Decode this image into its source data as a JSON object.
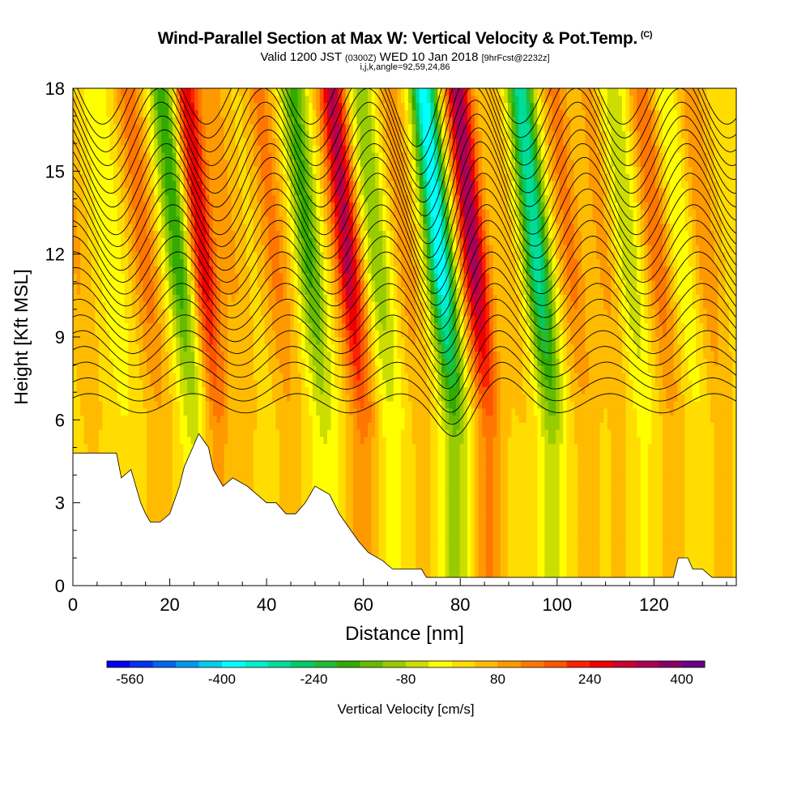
{
  "title": {
    "main": "Wind-Parallel Section at Max W: Vertical Velocity & Pot.Temp.",
    "copyright": "(C)",
    "valid_prefix": "Valid 1200 JST",
    "valid_utc": "(0300Z)",
    "valid_date": "WED 10 Jan 2018",
    "forecast": "[9hrFcst@2232z]",
    "indices": "i,j,k,angle=92,59,24,86"
  },
  "chart_data": {
    "type": "heatmap",
    "xlabel": "Distance [nm]",
    "ylabel": "Height [Kft MSL]",
    "xlim": [
      0,
      137
    ],
    "ylim": [
      0,
      18
    ],
    "x_ticks": [
      0,
      20,
      40,
      60,
      80,
      100,
      120
    ],
    "y_ticks": [
      0,
      3,
      6,
      9,
      12,
      15,
      18
    ],
    "grid": false,
    "colorbar": {
      "label": "Vertical Velocity [cm/s]",
      "tick_labels": [
        "-560",
        "-400",
        "-240",
        "-80",
        "80",
        "240",
        "400"
      ],
      "tick_values": [
        -560,
        -400,
        -240,
        -80,
        80,
        240,
        400
      ],
      "range": [
        -600,
        440
      ],
      "colors": [
        "#0000ee",
        "#0033ee",
        "#0066ee",
        "#0099ee",
        "#00ccee",
        "#00ffff",
        "#00eecc",
        "#00dd99",
        "#00cc66",
        "#22bb33",
        "#33aa00",
        "#66bb00",
        "#99cc00",
        "#ccdd00",
        "#ffff00",
        "#ffdd00",
        "#ffbb00",
        "#ff9900",
        "#ff7700",
        "#ff5500",
        "#ff2200",
        "#ee0000",
        "#cc0033",
        "#aa0055",
        "#880066",
        "#660088"
      ]
    },
    "w_features": [
      {
        "x_nm": 4,
        "w_cm_s": 60
      },
      {
        "x_nm": 11,
        "w_cm_s": -60
      },
      {
        "x_nm": 18,
        "w_cm_s": 120
      },
      {
        "x_nm": 25,
        "w_cm_s": -220
      },
      {
        "x_nm": 30,
        "w_cm_s": 250
      },
      {
        "x_nm": 36,
        "w_cm_s": 60
      },
      {
        "x_nm": 45,
        "w_cm_s": 110
      },
      {
        "x_nm": 52,
        "w_cm_s": -200
      },
      {
        "x_nm": 60,
        "w_cm_s": 300
      },
      {
        "x_nm": 66,
        "w_cm_s": -140
      },
      {
        "x_nm": 72,
        "w_cm_s": 80
      },
      {
        "x_nm": 79,
        "w_cm_s": -420
      },
      {
        "x_nm": 86,
        "w_cm_s": 330
      },
      {
        "x_nm": 93,
        "w_cm_s": 40
      },
      {
        "x_nm": 99,
        "w_cm_s": -340
      },
      {
        "x_nm": 106,
        "w_cm_s": 110
      },
      {
        "x_nm": 113,
        "w_cm_s": 70
      },
      {
        "x_nm": 118,
        "w_cm_s": -100
      },
      {
        "x_nm": 124,
        "w_cm_s": 130
      },
      {
        "x_nm": 129,
        "w_cm_s": -60
      },
      {
        "x_nm": 134,
        "w_cm_s": 90
      }
    ],
    "isentrope_count": 24,
    "terrain_kft": [
      [
        0,
        4.8
      ],
      [
        9,
        4.8
      ],
      [
        10,
        3.9
      ],
      [
        12,
        4.2
      ],
      [
        14,
        3.0
      ],
      [
        15,
        2.6
      ],
      [
        16,
        2.3
      ],
      [
        18,
        2.3
      ],
      [
        20,
        2.6
      ],
      [
        22,
        3.6
      ],
      [
        23,
        4.3
      ],
      [
        24,
        4.7
      ],
      [
        26,
        5.5
      ],
      [
        28,
        5.0
      ],
      [
        29,
        4.2
      ],
      [
        31,
        3.6
      ],
      [
        33,
        3.9
      ],
      [
        36,
        3.6
      ],
      [
        38,
        3.3
      ],
      [
        40,
        3.0
      ],
      [
        42,
        3.0
      ],
      [
        44,
        2.6
      ],
      [
        46,
        2.6
      ],
      [
        48,
        3.0
      ],
      [
        50,
        3.6
      ],
      [
        53,
        3.3
      ],
      [
        55,
        2.6
      ],
      [
        57,
        2.1
      ],
      [
        59,
        1.6
      ],
      [
        61,
        1.2
      ],
      [
        64,
        0.9
      ],
      [
        66,
        0.6
      ],
      [
        72,
        0.6
      ],
      [
        73,
        0.3
      ],
      [
        124,
        0.3
      ],
      [
        125,
        1.0
      ],
      [
        127,
        1.0
      ],
      [
        128,
        0.6
      ],
      [
        130,
        0.6
      ],
      [
        132,
        0.3
      ],
      [
        137,
        0.3
      ]
    ]
  }
}
